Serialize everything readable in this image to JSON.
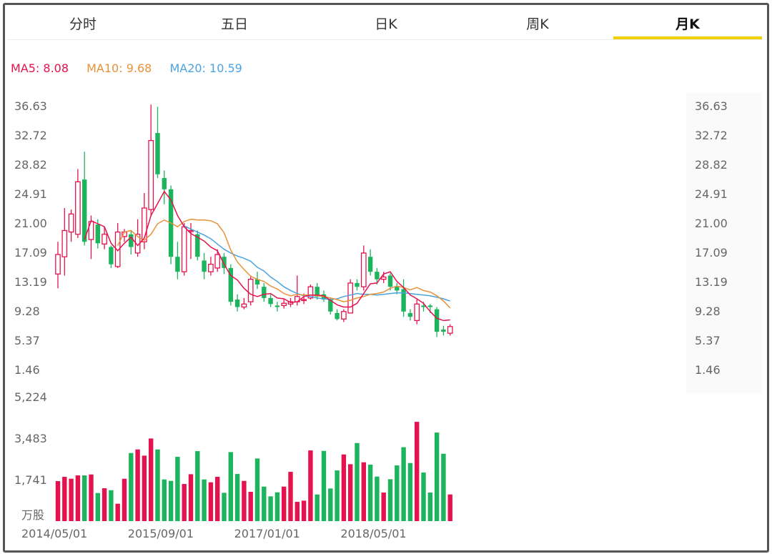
{
  "tabs": [
    {
      "label": "分时"
    },
    {
      "label": "五日"
    },
    {
      "label": "日K"
    },
    {
      "label": "周K"
    },
    {
      "label": "月K",
      "active": true
    }
  ],
  "legend": {
    "ma5": "MA5: 8.08",
    "ma10": "MA10: 9.68",
    "ma20": "MA20: 10.59"
  },
  "colors": {
    "up": "#e5134d",
    "down": "#1cb45c",
    "ma5": "#e5134d",
    "ma10": "#e8923a",
    "ma20": "#4aa3df",
    "accent": "#f0d000"
  },
  "chart_data": {
    "type": "candlestick",
    "price_ticks": [
      "36.63",
      "32.72",
      "28.82",
      "24.91",
      "21.00",
      "17.09",
      "13.19",
      "9.28",
      "5.37",
      "1.46"
    ],
    "volume_ticks": [
      "5,224",
      "3,483",
      "1,741"
    ],
    "volume_unit": "万股",
    "x_labels": [
      "2014/05/01",
      "2015/09/01",
      "2017/01/01",
      "2018/05/01"
    ],
    "x_label_index": [
      0,
      16,
      32,
      48
    ],
    "price_range": [
      1.46,
      36.63
    ],
    "volume_range": [
      0,
      5224
    ],
    "candles": [
      [
        14.2,
        16.8,
        18.5,
        12.3
      ],
      [
        16.5,
        20.0,
        23.0,
        14.0
      ],
      [
        19.8,
        22.2,
        22.8,
        18.5
      ],
      [
        19.5,
        26.5,
        28.2,
        19.0
      ],
      [
        26.8,
        18.5,
        30.5,
        18.0
      ],
      [
        18.8,
        21.2,
        22.0,
        16.2
      ],
      [
        20.8,
        18.3,
        21.5,
        17.6
      ],
      [
        18.2,
        19.5,
        20.5,
        17.5
      ],
      [
        17.8,
        15.5,
        18.0,
        15.0
      ],
      [
        15.2,
        19.8,
        21.0,
        15.0
      ],
      [
        19.2,
        19.8,
        20.2,
        18.5
      ],
      [
        19.5,
        17.8,
        20.0,
        16.8
      ],
      [
        17.0,
        19.5,
        21.5,
        16.5
      ],
      [
        18.5,
        23.0,
        25.0,
        17.5
      ],
      [
        22.8,
        32.0,
        36.8,
        22.0
      ],
      [
        33.0,
        27.5,
        36.5,
        27.0
      ],
      [
        27.0,
        25.5,
        28.0,
        23.5
      ],
      [
        25.5,
        16.5,
        26.0,
        15.5
      ],
      [
        16.5,
        14.5,
        18.5,
        13.5
      ],
      [
        14.5,
        20.5,
        21.0,
        14.0
      ],
      [
        20.0,
        20.0,
        21.0,
        16.2
      ],
      [
        19.5,
        16.5,
        20.0,
        16.0
      ],
      [
        16.0,
        14.5,
        17.0,
        13.5
      ],
      [
        14.5,
        15.5,
        16.5,
        14.0
      ],
      [
        15.0,
        16.8,
        17.5,
        14.5
      ],
      [
        16.5,
        15.0,
        17.0,
        14.2
      ],
      [
        15.0,
        10.5,
        15.5,
        10.0
      ],
      [
        10.8,
        9.8,
        11.5,
        9.2
      ],
      [
        9.8,
        10.2,
        11.0,
        9.5
      ],
      [
        10.5,
        13.5,
        14.0,
        10.0
      ],
      [
        13.5,
        12.8,
        14.5,
        12.2
      ],
      [
        12.5,
        11.0,
        13.0,
        10.5
      ],
      [
        11.0,
        10.2,
        11.5,
        9.8
      ],
      [
        10.0,
        9.8,
        10.5,
        9.2
      ],
      [
        10.0,
        10.3,
        10.8,
        9.6
      ],
      [
        10.2,
        10.5,
        11.0,
        9.8
      ],
      [
        10.5,
        11.2,
        14.0,
        10.0
      ],
      [
        10.8,
        10.8,
        11.6,
        10.2
      ],
      [
        11.0,
        12.5,
        12.8,
        10.8
      ],
      [
        12.5,
        11.2,
        13.0,
        10.8
      ],
      [
        11.5,
        10.8,
        12.0,
        10.5
      ],
      [
        10.8,
        9.2,
        11.0,
        8.8
      ],
      [
        9.0,
        8.2,
        9.5,
        8.0
      ],
      [
        8.2,
        9.2,
        9.5,
        7.8
      ],
      [
        9.0,
        13.0,
        13.5,
        9.0
      ],
      [
        13.0,
        12.5,
        13.5,
        12.0
      ],
      [
        12.5,
        17.0,
        18.0,
        12.0
      ],
      [
        16.5,
        14.5,
        17.5,
        14.0
      ],
      [
        14.5,
        13.5,
        15.0,
        12.8
      ],
      [
        13.5,
        13.8,
        14.5,
        13.0
      ],
      [
        14.0,
        12.5,
        14.3,
        12.0
      ],
      [
        12.5,
        12.0,
        13.0,
        11.5
      ],
      [
        12.2,
        9.2,
        13.5,
        8.5
      ],
      [
        9.0,
        8.5,
        9.5,
        8.0
      ],
      [
        8.0,
        10.2,
        10.8,
        7.5
      ],
      [
        10.0,
        9.8,
        10.5,
        9.2
      ],
      [
        10.0,
        9.8,
        10.2,
        9.0
      ],
      [
        9.5,
        6.5,
        9.8,
        5.8
      ],
      [
        6.8,
        6.5,
        7.3,
        6.0
      ],
      [
        6.3,
        7.2,
        7.5,
        6.0
      ]
    ],
    "volumes": [
      1680,
      1860,
      1780,
      1920,
      1920,
      1960,
      1180,
      1380,
      1300,
      730,
      1780,
      2860,
      3010,
      2750,
      3470,
      3010,
      1750,
      1690,
      2700,
      1560,
      1970,
      2940,
      1750,
      1630,
      1860,
      1190,
      2900,
      1980,
      1690,
      1230,
      2630,
      1450,
      1040,
      1210,
      1450,
      2070,
      810,
      860,
      2970,
      1120,
      2950,
      1370,
      2130,
      2800,
      2390,
      3280,
      2470,
      2370,
      1870,
      1200,
      1760,
      2340,
      3105,
      2440,
      4170,
      2040,
      1200,
      3720,
      2830,
      1120
    ],
    "ma5": [
      null,
      null,
      null,
      null,
      18.8,
      21.3,
      20.9,
      20.5,
      18.3,
      17.3,
      18.3,
      19.1,
      18.0,
      19.0,
      22.0,
      23.6,
      25.2,
      24.1,
      22.0,
      20.5,
      19.6,
      19.1,
      18.6,
      17.8,
      17.3,
      15.5,
      14.0,
      13.4,
      12.3,
      11.5,
      11.2,
      11.5,
      11.6,
      11.0,
      10.9,
      10.4,
      10.5,
      11.2,
      11.4,
      11.4,
      11.3,
      10.7,
      10.1,
      9.8,
      9.8,
      10.3,
      11.6,
      12.9,
      13.0,
      14.2,
      14.5,
      13.2,
      12.4,
      11.4,
      10.9,
      10.3,
      9.2,
      8.3,
      8.0,
      8.08
    ],
    "ma10": [
      null,
      null,
      null,
      null,
      null,
      null,
      null,
      null,
      null,
      18.0,
      19.8,
      20.0,
      19.2,
      18.7,
      19.5,
      20.9,
      21.4,
      21.0,
      20.5,
      21.2,
      21.5,
      21.4,
      21.4,
      21.3,
      20.9,
      19.7,
      17.4,
      15.8,
      14.8,
      13.9,
      13.5,
      13.2,
      12.6,
      12.2,
      11.6,
      11.3,
      11.5,
      11.4,
      11.4,
      11.3,
      11.2,
      11.0,
      10.8,
      10.5,
      10.7,
      11.0,
      11.2,
      11.5,
      11.6,
      11.8,
      12.3,
      12.6,
      12.4,
      12.1,
      12.4,
      12.0,
      11.8,
      11.3,
      10.6,
      9.68
    ],
    "ma20": [
      null,
      null,
      null,
      null,
      null,
      null,
      null,
      null,
      null,
      null,
      null,
      null,
      null,
      null,
      null,
      null,
      null,
      null,
      null,
      20.6,
      20.2,
      19.8,
      19.4,
      18.9,
      18.2,
      17.5,
      17.0,
      16.6,
      16.3,
      15.9,
      15.1,
      14.6,
      13.8,
      13.2,
      12.5,
      12.0,
      11.6,
      11.3,
      11.2,
      11.0,
      10.9,
      10.8,
      10.9,
      11.2,
      11.4,
      11.6,
      11.5,
      11.5,
      11.4,
      11.5,
      11.6,
      11.7,
      11.7,
      11.6,
      11.5,
      11.4,
      11.3,
      11.1,
      10.9,
      10.59
    ]
  }
}
